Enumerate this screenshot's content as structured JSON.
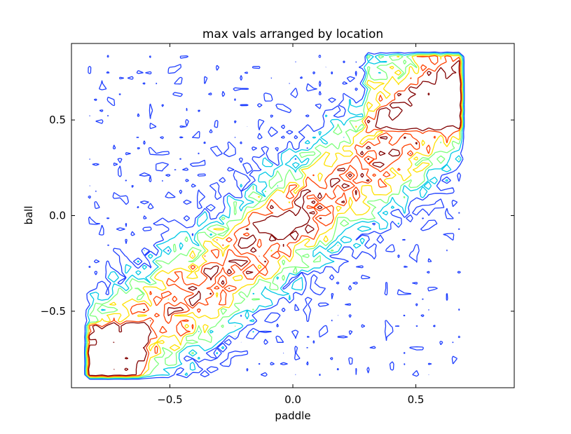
{
  "chart_data": {
    "type": "contour",
    "title": "max vals arranged by location",
    "xlabel": "paddle",
    "ylabel": "ball",
    "xlim": [
      -0.9,
      0.9
    ],
    "ylim": [
      -0.9,
      0.9
    ],
    "grid": false,
    "x_ticks": [
      {
        "value": -0.5,
        "label": "−0.5"
      },
      {
        "value": 0.0,
        "label": "0.0"
      },
      {
        "value": 0.5,
        "label": "0.5"
      }
    ],
    "y_ticks": [
      {
        "value": -0.5,
        "label": "−0.5"
      },
      {
        "value": 0.0,
        "label": "0.0"
      },
      {
        "value": 0.5,
        "label": "0.5"
      }
    ],
    "grid_extent": {
      "x": [
        -0.85,
        0.7
      ],
      "y": [
        -0.86,
        0.86
      ]
    },
    "contour_levels": [
      0.15,
      0.3,
      0.45,
      0.6,
      0.75,
      0.9
    ],
    "level_colors": [
      "#1f3fff",
      "#00c8e6",
      "#7cff7a",
      "#ffe000",
      "#ff4000",
      "#800000"
    ],
    "ridge": {
      "slope": 0.95,
      "intercept": -0.02,
      "width": 0.16
    },
    "core": {
      "x": -0.05,
      "y": -0.05,
      "rx": 0.12,
      "ry": 0.08
    }
  }
}
